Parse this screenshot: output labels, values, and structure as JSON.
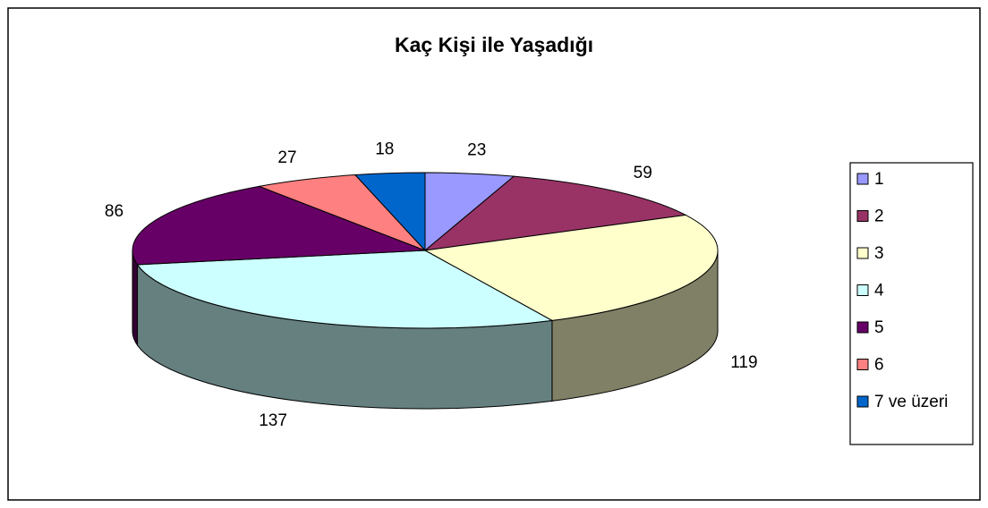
{
  "chart_data": {
    "type": "pie3d",
    "title": "Kaç Kişi ile Yaşadığı",
    "categories": [
      "1",
      "2",
      "3",
      "4",
      "5",
      "6",
      "7 ve üzeri"
    ],
    "values": [
      23,
      59,
      119,
      137,
      86,
      27,
      18
    ],
    "colors": [
      "#9999ff",
      "#993366",
      "#ffffcc",
      "#ccffff",
      "#660066",
      "#ff8080",
      "#0066cc"
    ],
    "legend": "right"
  }
}
